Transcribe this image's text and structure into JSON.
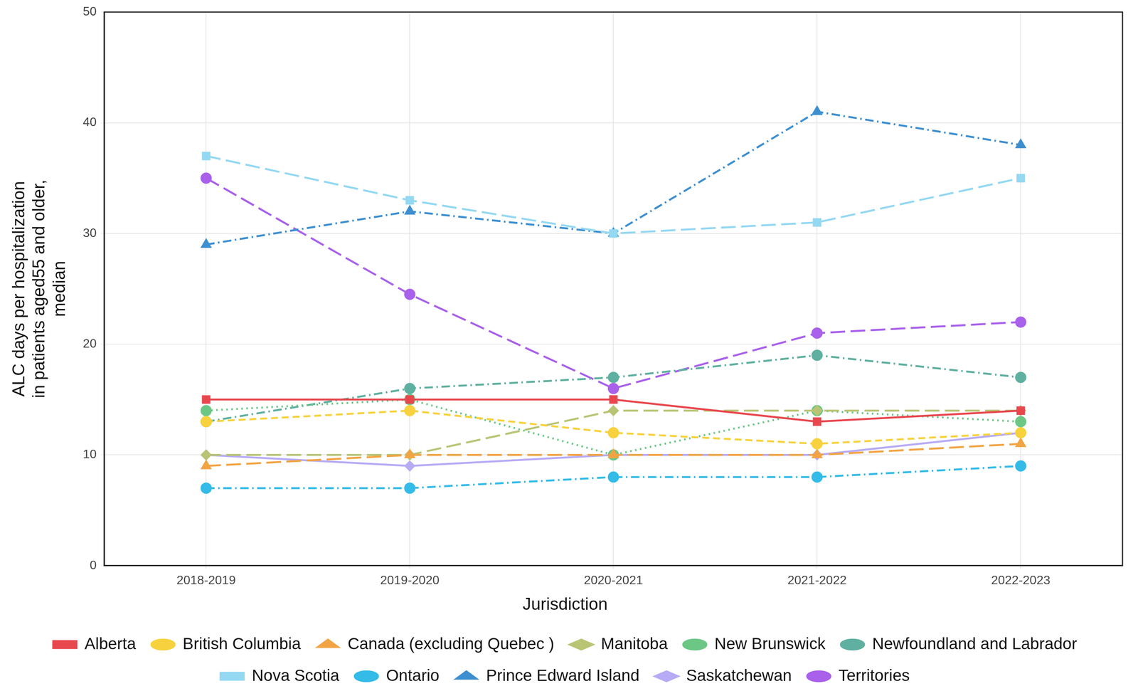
{
  "chart_data": {
    "type": "line",
    "y_label": [
      "ALC days per hospitalization",
      "in patients aged55 and older,",
      "median"
    ],
    "legend_title": "Jurisdiction",
    "legend": "bottom",
    "grid": true,
    "categories": [
      "2018-2019",
      "2019-2020",
      "2020-2021",
      "2021-2022",
      "2022-2023"
    ],
    "ylim": [
      0,
      50
    ],
    "yticks": [
      0,
      10,
      20,
      30,
      40,
      50
    ],
    "series": [
      {
        "name": "Alberta",
        "color": "#e8474e",
        "marker": "square",
        "line_style": "solid",
        "values": [
          15,
          15,
          15,
          13,
          14
        ]
      },
      {
        "name": "British Columbia",
        "color": "#f7d23e",
        "marker": "circle",
        "line_style": "dashed",
        "values": [
          13,
          14,
          12,
          11,
          12
        ]
      },
      {
        "name": "Canada (excluding Quebec )",
        "color": "#f2a444",
        "marker": "triangle",
        "line_style": "longdash",
        "values": [
          9,
          10,
          10,
          10,
          11
        ]
      },
      {
        "name": "Manitoba",
        "color": "#b9c474",
        "marker": "diamond",
        "line_style": "longdash",
        "values": [
          10,
          10,
          14,
          14,
          14
        ]
      },
      {
        "name": "New Brunswick",
        "color": "#6cc785",
        "marker": "circle",
        "line_style": "dotted",
        "values": [
          14,
          15,
          10,
          14,
          13
        ]
      },
      {
        "name": "Newfoundland and Labrador",
        "color": "#5fb0a0",
        "marker": "circle",
        "line_style": "dashdot",
        "values": [
          13,
          16,
          17,
          19,
          17
        ]
      },
      {
        "name": "Nova Scotia",
        "color": "#94d8f2",
        "marker": "square",
        "line_style": "longdash",
        "values": [
          37,
          33,
          30,
          31,
          35
        ]
      },
      {
        "name": "Ontario",
        "color": "#34bbe8",
        "marker": "circle",
        "line_style": "dashdot",
        "values": [
          7,
          7,
          8,
          8,
          9
        ]
      },
      {
        "name": "Prince Edward Island",
        "color": "#3d8fd0",
        "marker": "triangle",
        "line_style": "dashdot",
        "values": [
          29,
          32,
          30,
          41,
          38
        ]
      },
      {
        "name": "Saskatchewan",
        "color": "#b7abf5",
        "marker": "diamond",
        "line_style": "solid",
        "values": [
          10,
          9,
          10,
          10,
          12
        ]
      },
      {
        "name": "Territories",
        "color": "#a960ea",
        "marker": "circle",
        "line_style": "longdash",
        "values": [
          35,
          24.5,
          16,
          21,
          22
        ]
      }
    ]
  }
}
